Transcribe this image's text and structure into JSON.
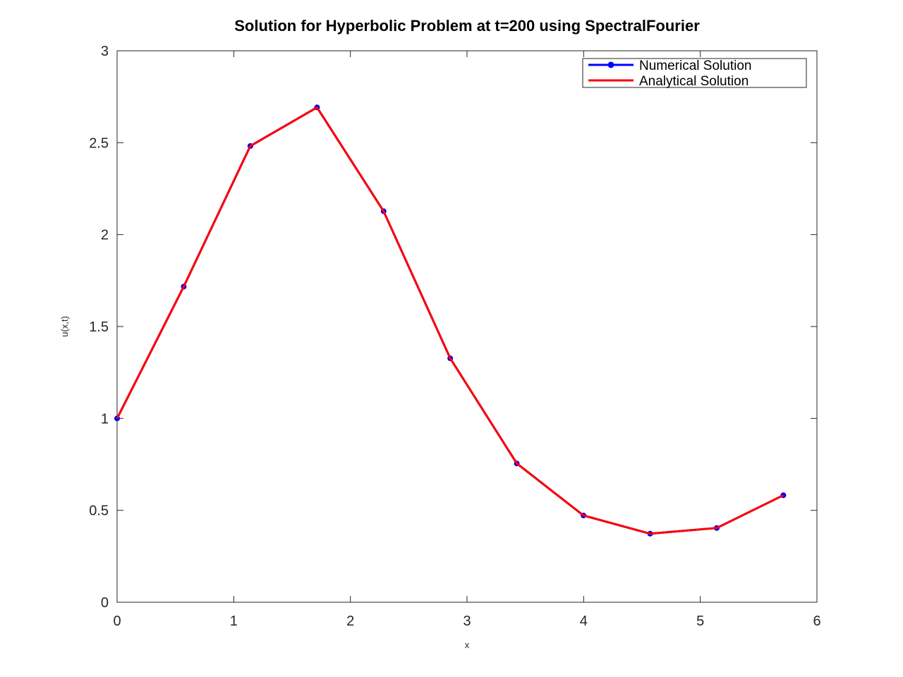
{
  "chart_data": {
    "type": "line",
    "title": "Solution for Hyperbolic Problem at t=200 using SpectralFourier",
    "xlabel": "x",
    "ylabel": "u(x,t)",
    "xlim": [
      0,
      6
    ],
    "ylim": [
      0,
      3
    ],
    "xticks": [
      0,
      1,
      2,
      3,
      4,
      5,
      6
    ],
    "yticks": [
      0,
      0.5,
      1,
      1.5,
      2,
      2.5,
      3
    ],
    "xtick_labels": [
      "0",
      "1",
      "2",
      "3",
      "4",
      "5",
      "6"
    ],
    "ytick_labels": [
      "0",
      "0.5",
      "1",
      "1.5",
      "2",
      "2.5",
      "3"
    ],
    "grid": false,
    "legend_position": "top-right",
    "x": [
      0,
      0.571,
      1.142,
      1.714,
      2.285,
      2.856,
      3.427,
      3.998,
      4.57,
      5.141,
      5.712
    ],
    "series": [
      {
        "name": "Numerical Solution",
        "color": "#0000ff",
        "marker": "circle",
        "values": [
          1.0,
          1.717,
          2.482,
          2.692,
          2.127,
          1.327,
          0.755,
          0.472,
          0.373,
          0.404,
          0.582
        ]
      },
      {
        "name": "Analytical Solution",
        "color": "#ff0000",
        "marker": "none",
        "values": [
          1.0,
          1.717,
          2.482,
          2.692,
          2.127,
          1.327,
          0.755,
          0.472,
          0.373,
          0.404,
          0.582
        ]
      }
    ]
  }
}
